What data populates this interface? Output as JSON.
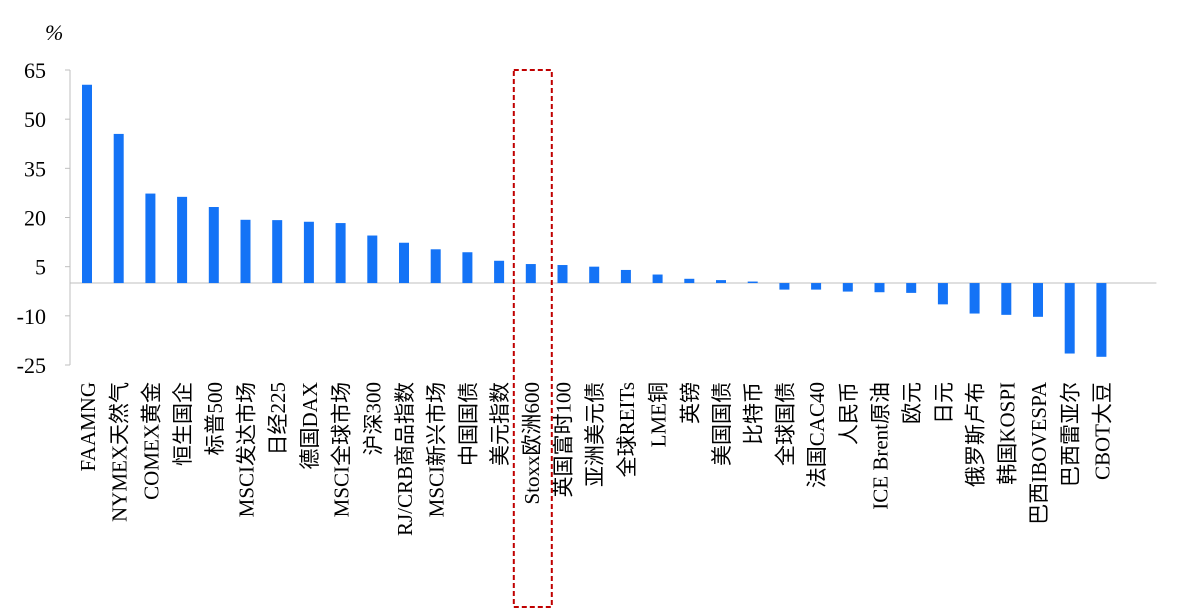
{
  "chart_data": {
    "type": "bar",
    "ylabel": "%",
    "ylim": [
      -25,
      65
    ],
    "yticks": [
      65,
      50,
      35,
      20,
      5,
      -10,
      -25
    ],
    "bar_color": "#1473F6",
    "highlight_color": "#C00000",
    "highlight_category": "Stoxx欧洲600",
    "categories": [
      "FAAMNG",
      "NYMEX天然气",
      "COMEX黄金",
      "恒生国企",
      "标普500",
      "MSCI发达市场",
      "日经225",
      "德国DAX",
      "MSCI全球市场",
      "沪深300",
      "RJ/CRB商品指数",
      "MSCI新兴市场",
      "中国国债",
      "美元指数",
      "Stoxx欧洲600",
      "英国富时100",
      "亚洲美元债",
      "全球REITs",
      "LME铜",
      "英镑",
      "美国国债",
      "比特币",
      "全球国债",
      "法国CAC40",
      "人民币",
      "ICE Brent原油",
      "欧元",
      "日元",
      "俄罗斯卢布",
      "韩国KOSPI",
      "巴西IBOVESPA",
      "巴西雷亚尔",
      "CBOT大豆"
    ],
    "values": [
      60.5,
      45.5,
      27.3,
      26.3,
      23.2,
      19.3,
      19.2,
      18.7,
      18.3,
      14.5,
      12.3,
      10.3,
      9.4,
      6.8,
      5.8,
      5.5,
      5.0,
      4.0,
      2.6,
      1.3,
      0.9,
      0.1,
      -2.0,
      -2.0,
      -2.6,
      -2.8,
      -3.0,
      -6.5,
      -9.3,
      -9.7,
      -10.3,
      -21.5,
      -22.5
    ]
  }
}
